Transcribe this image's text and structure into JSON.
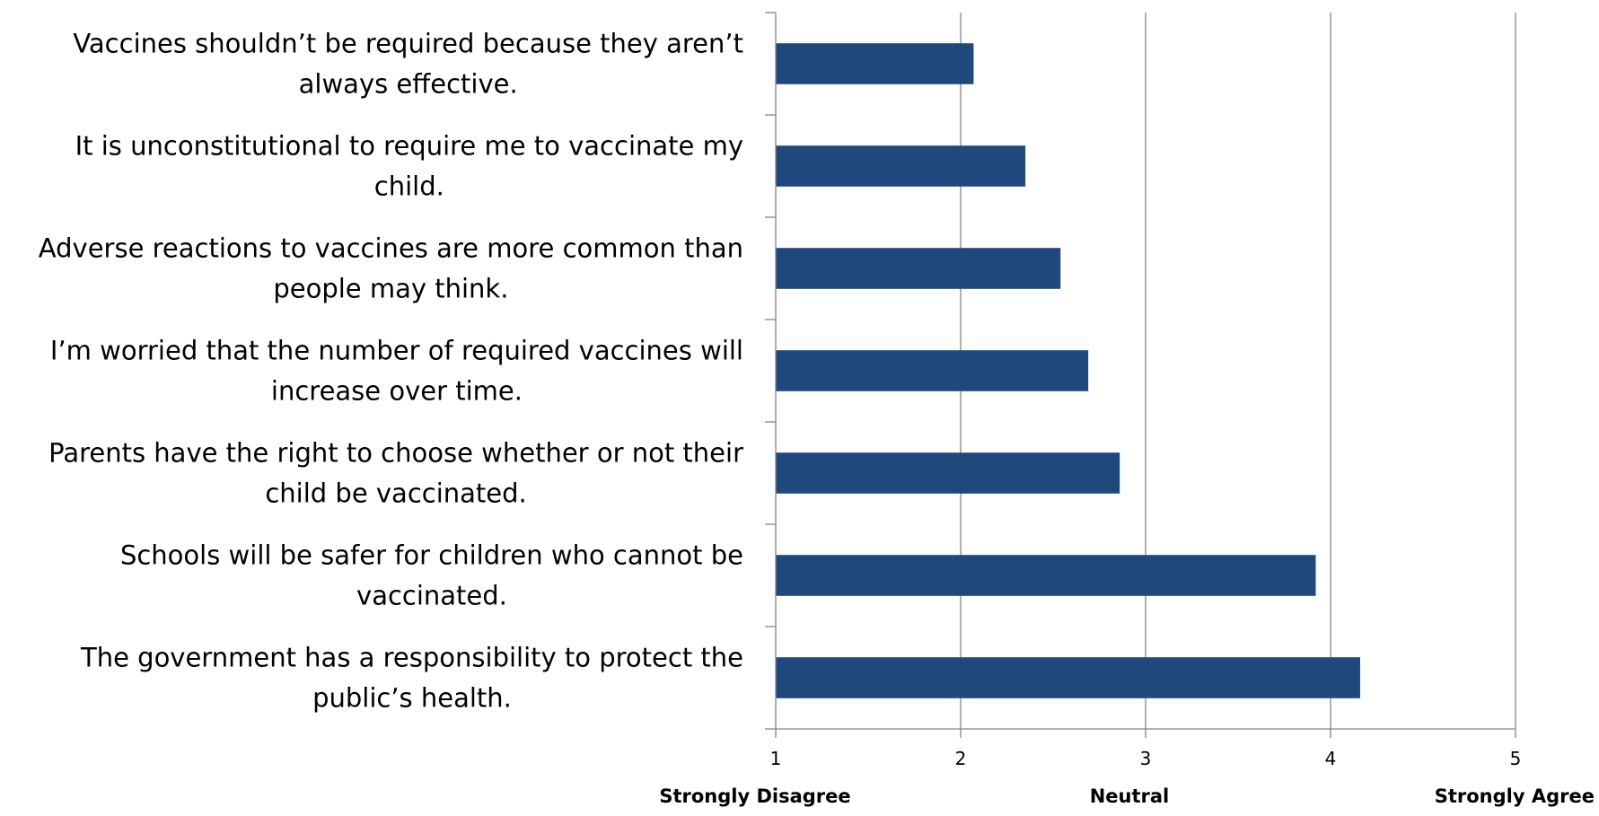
{
  "chart_data": {
    "type": "bar",
    "orientation": "horizontal",
    "categories": [
      [
        "Vaccines shouldn’t be required because they aren’t",
        "always effective."
      ],
      [
        "It is unconstitutional to require me to vaccinate my",
        "child."
      ],
      [
        "Adverse reactions to vaccines are more common than",
        "people may think."
      ],
      [
        "I’m worried that the number of required vaccines will",
        "increase over time."
      ],
      [
        "Parents have the right to choose whether or not their",
        "child be vaccinated."
      ],
      [
        "Schools will be safer for children who cannot be",
        "vaccinated."
      ],
      [
        "The government has a responsibility to protect the",
        "public’s health."
      ]
    ],
    "values": [
      2.07,
      2.35,
      2.54,
      2.69,
      2.86,
      3.92,
      4.16
    ],
    "xlim": [
      1,
      5
    ],
    "xticks": [
      "1",
      "2",
      "3",
      "4",
      "5"
    ],
    "anchor_labels": [
      {
        "value": 1,
        "text": "Strongly Disagree"
      },
      {
        "value": 3,
        "text": "Neutral"
      },
      {
        "value": 5,
        "text": "Strongly Agree"
      }
    ],
    "grid": true,
    "colors": {
      "bar": "#1f497d",
      "grid": "#868686",
      "axis": "#868686"
    }
  }
}
